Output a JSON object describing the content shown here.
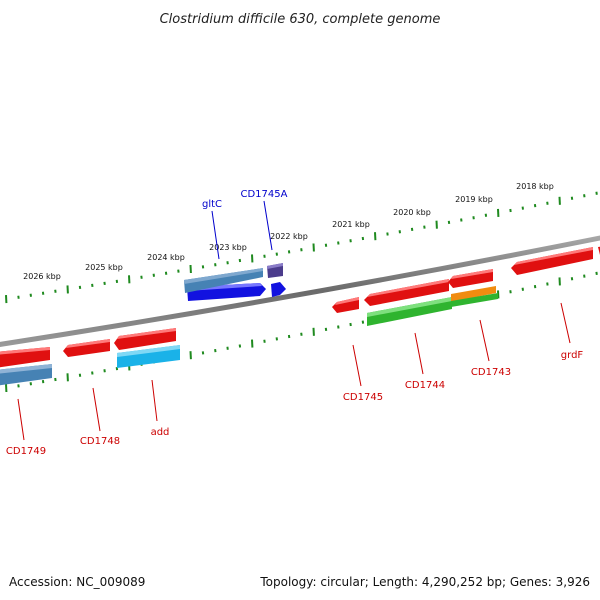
{
  "title": "Clostridium difficile 630, complete genome",
  "footer": {
    "accession": "Accession: NC_009089",
    "summary": "Topology: circular; Length: 4,290,252 bp; Genes: 3,926"
  },
  "colors": {
    "background": "#ffffff",
    "backbone": "#7a7a7a",
    "ticks": "#1f8a1f",
    "forward_label": "#0000cc",
    "reverse_label": "#cc0000"
  },
  "scale_labels": [
    "2026 kbp",
    "2025 kbp",
    "2024 kbp",
    "2023 kbp",
    "2022 kbp",
    "2021 kbp",
    "2020 kbp",
    "2019 kbp",
    "2018 kbp"
  ],
  "genes": [
    {
      "name": "gltC",
      "strand": "forward"
    },
    {
      "name": "CD1745A",
      "strand": "forward"
    },
    {
      "name": "CD1749",
      "strand": "reverse"
    },
    {
      "name": "CD1748",
      "strand": "reverse"
    },
    {
      "name": "add",
      "strand": "reverse"
    },
    {
      "name": "CD1745",
      "strand": "reverse"
    },
    {
      "name": "CD1744",
      "strand": "reverse"
    },
    {
      "name": "CD1743",
      "strand": "reverse"
    },
    {
      "name": "grdF",
      "strand": "reverse"
    }
  ]
}
